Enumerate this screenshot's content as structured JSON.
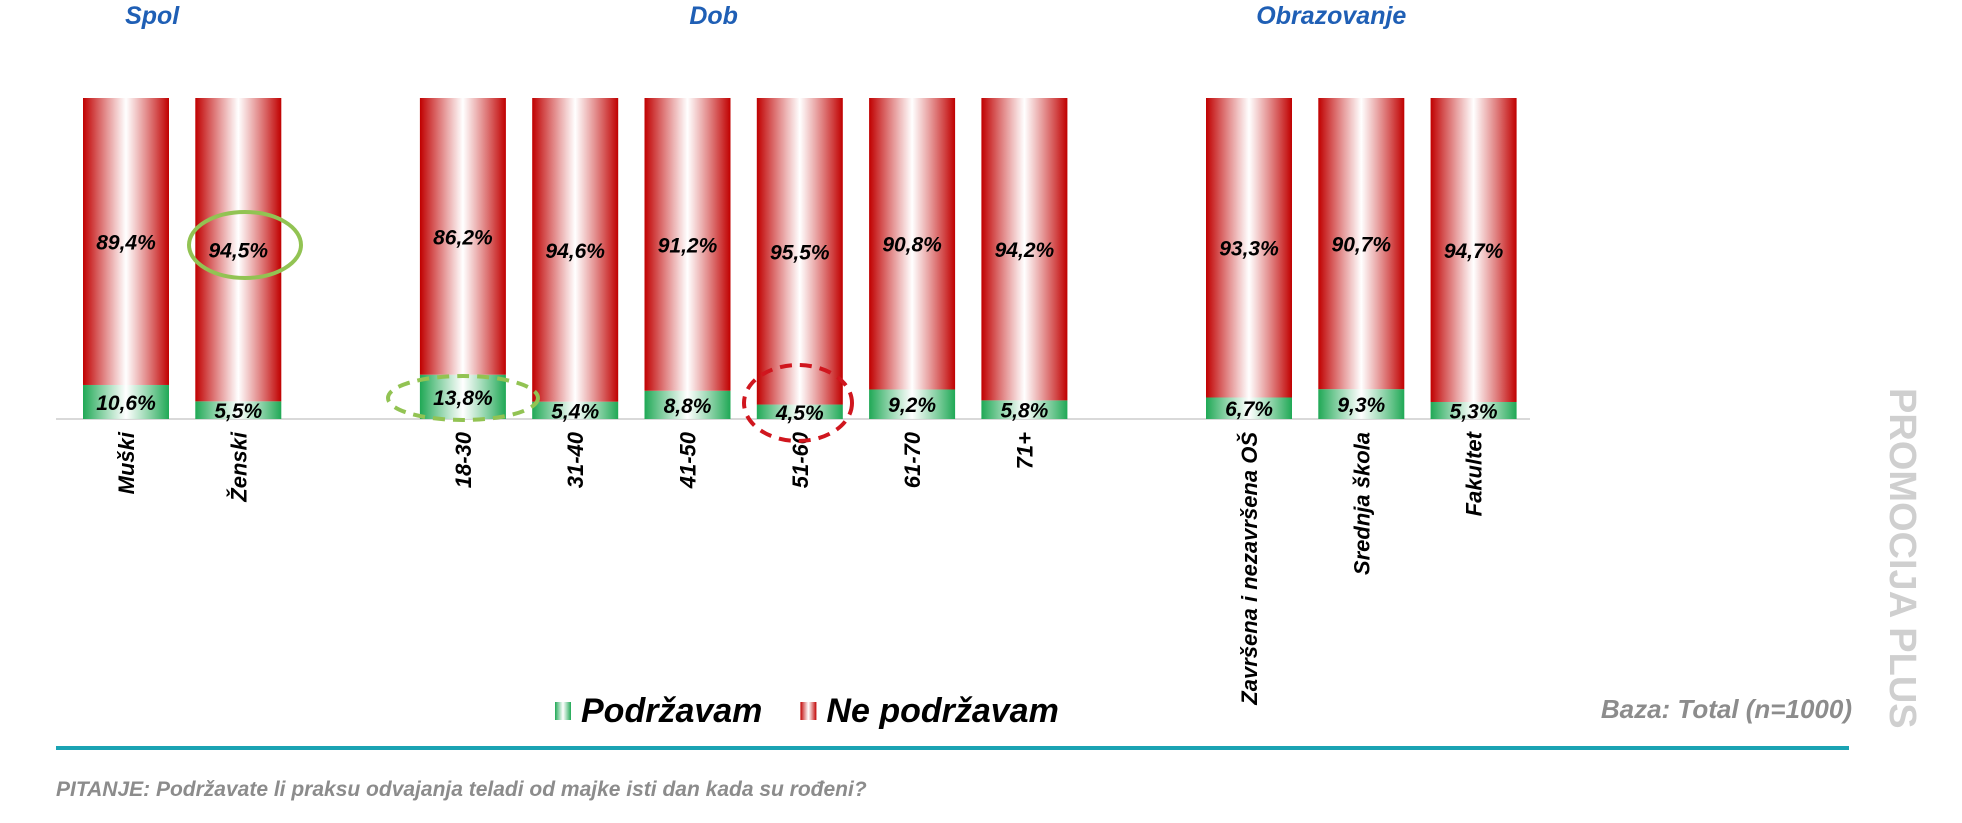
{
  "chart_data": {
    "type": "stacked_bar",
    "ylim": [
      0,
      100
    ],
    "series": [
      {
        "name": "Podržavam",
        "color": "#1fa855"
      },
      {
        "name": "Ne podržavam",
        "color": "#c00000"
      }
    ],
    "groups": [
      {
        "title": "Spol",
        "categories": [
          "Muški",
          "Ženski"
        ],
        "values": [
          [
            10.6,
            5.5
          ],
          [
            89.4,
            94.5
          ]
        ],
        "value_labels": [
          [
            "10,6%",
            "5,5%"
          ],
          [
            "89,4%",
            "94,5%"
          ]
        ]
      },
      {
        "title": "Dob",
        "categories": [
          "18-30",
          "31-40",
          "41-50",
          "51-60",
          "61-70",
          "71+"
        ],
        "values": [
          [
            13.8,
            5.4,
            8.8,
            4.5,
            9.2,
            5.8
          ],
          [
            86.2,
            94.6,
            91.2,
            95.5,
            90.8,
            94.2
          ]
        ],
        "value_labels": [
          [
            "13,8%",
            "5,4%",
            "8,8%",
            "4,5%",
            "9,2%",
            "5,8%"
          ],
          [
            "86,2%",
            "94,6%",
            "91,2%",
            "95,5%",
            "90,8%",
            "94,2%"
          ]
        ]
      },
      {
        "title": "Obrazovanje",
        "categories": [
          "Završena i nezavršena OŠ",
          "Srednja škola",
          "Fakultet"
        ],
        "values": [
          [
            6.7,
            9.3,
            5.3
          ],
          [
            93.3,
            90.7,
            94.7
          ]
        ],
        "value_labels": [
          [
            "6,7%",
            "9,3%",
            "5,3%"
          ],
          [
            "93,3%",
            "90,7%",
            "94,7%"
          ]
        ]
      }
    ],
    "base_note": "Baza: Total (n=1000)",
    "question": "PITANJE: Podržavate li praksu odvajanja teladi od majke isti dan kada su rođeni?",
    "watermark": "PROMOCIJA PLUS"
  }
}
